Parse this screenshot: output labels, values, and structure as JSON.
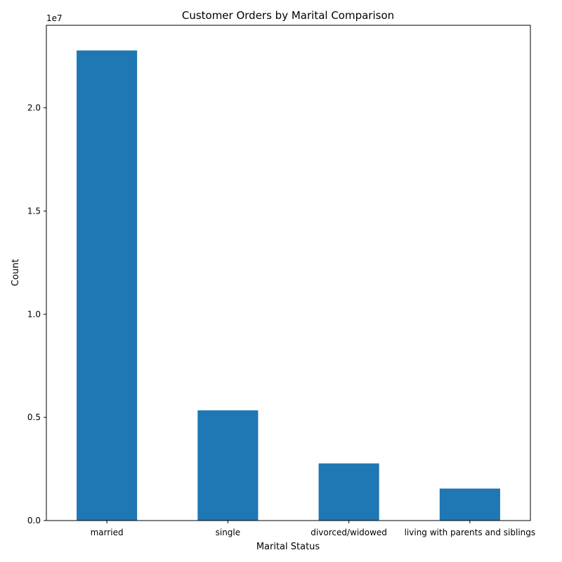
{
  "chart_data": {
    "type": "bar",
    "title": "Customer Orders by Marital Comparison",
    "xlabel": "Marital Status",
    "ylabel": "Count",
    "y_offset_label": "1e7",
    "categories": [
      "married",
      "single",
      "divorced/widowed",
      "living with parents and siblings"
    ],
    "values": [
      22780000,
      5340000,
      2770000,
      1550000
    ],
    "ylim": [
      0,
      24000000
    ],
    "y_ticks": [
      0,
      5000000,
      10000000,
      15000000,
      20000000
    ],
    "y_tick_labels": [
      "0.0",
      "0.5",
      "1.0",
      "1.5",
      "2.0"
    ],
    "bar_color": "#1f77b4",
    "grid": false,
    "legend": "none"
  }
}
